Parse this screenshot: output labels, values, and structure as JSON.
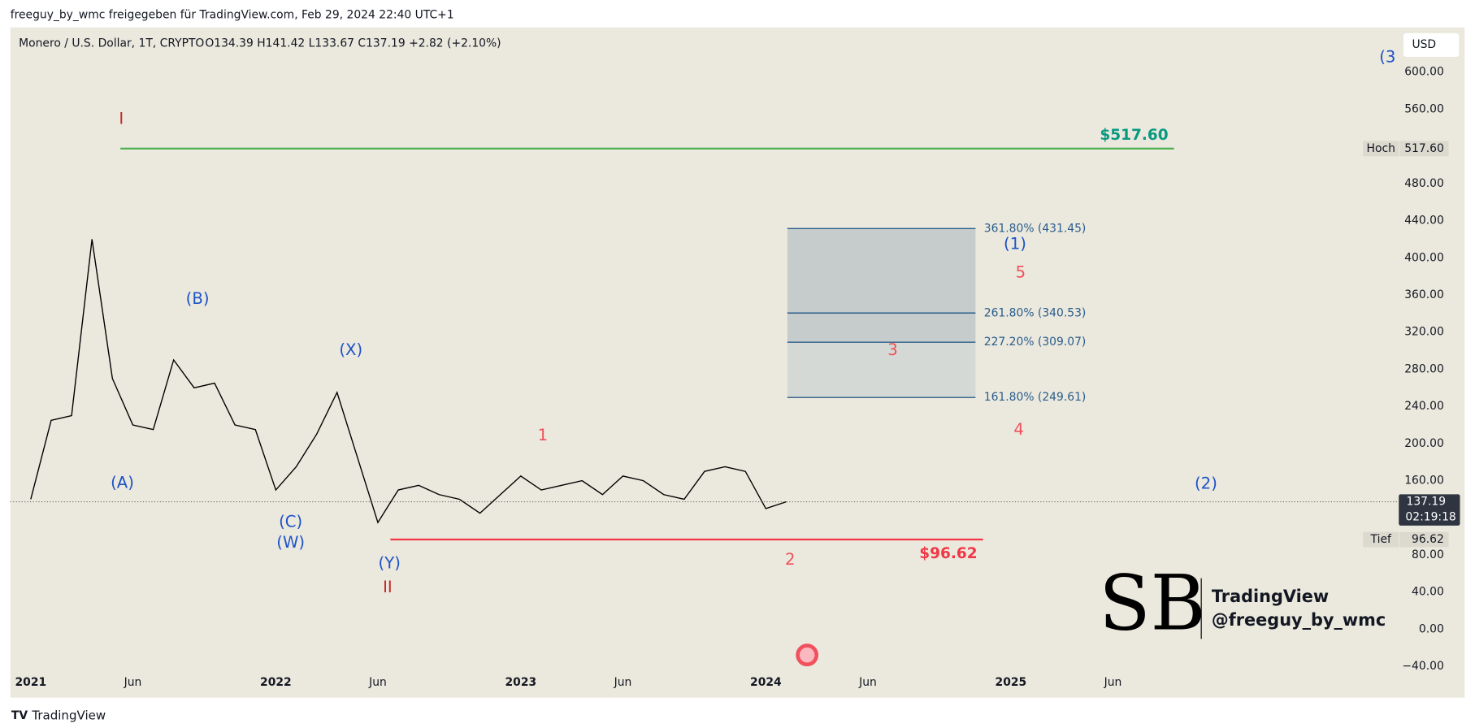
{
  "header": "freeguy_by_wmc freigegeben für TradingView.com, Feb 29, 2024 22:40 UTC+1",
  "footer": "TradingView",
  "currency": "USD",
  "watermark": [
    "TradingView",
    "@freeguy_by_wmc"
  ],
  "chart_data": {
    "type": "line",
    "title": "Monero / U.S. Dollar, 1T, CRYPTO",
    "ohlc_text": "O134.39  H141.42  L133.67  C137.19  +2.82 (+2.10%)",
    "color": "#000000",
    "x": [
      "2021-01",
      "2021-02",
      "2021-03",
      "2021-04",
      "2021-05",
      "2021-06",
      "2021-07",
      "2021-08",
      "2021-09",
      "2021-10",
      "2021-11",
      "2021-12",
      "2022-01",
      "2022-02",
      "2022-03",
      "2022-04",
      "2022-05",
      "2022-06",
      "2022-07",
      "2022-08",
      "2022-09",
      "2022-10",
      "2022-11",
      "2022-12",
      "2023-01",
      "2023-02",
      "2023-03",
      "2023-04",
      "2023-05",
      "2023-06",
      "2023-07",
      "2023-08",
      "2023-09",
      "2023-10",
      "2023-11",
      "2023-12",
      "2024-01",
      "2024-02"
    ],
    "values": [
      140,
      225,
      230,
      420,
      270,
      220,
      215,
      290,
      260,
      265,
      220,
      215,
      150,
      175,
      210,
      255,
      185,
      115,
      150,
      155,
      145,
      140,
      125,
      145,
      165,
      150,
      155,
      160,
      145,
      165,
      160,
      145,
      140,
      170,
      175,
      170,
      130,
      137.19
    ],
    "xlim": [
      "2020-12",
      "2026-08"
    ],
    "xticks": [
      {
        "value": "2021-01",
        "label": "2021"
      },
      {
        "value": "2021-06",
        "label": "Jun"
      },
      {
        "value": "2022-01",
        "label": "2022"
      },
      {
        "value": "2022-06",
        "label": "Jun"
      },
      {
        "value": "2023-01",
        "label": "2023"
      },
      {
        "value": "2023-06",
        "label": "Jun"
      },
      {
        "value": "2024-01",
        "label": "2024"
      },
      {
        "value": "2024-06",
        "label": "Jun"
      },
      {
        "value": "2025-01",
        "label": "2025"
      },
      {
        "value": "2025-06",
        "label": "Jun"
      }
    ],
    "ylim": [
      -40,
      648
    ],
    "yticks": [
      {
        "value": 600,
        "label": "600.00"
      },
      {
        "value": 560,
        "label": "560.00"
      },
      {
        "value": 480,
        "label": "480.00"
      },
      {
        "value": 440,
        "label": "440.00"
      },
      {
        "value": 400,
        "label": "400.00"
      },
      {
        "value": 360,
        "label": "360.00"
      },
      {
        "value": 320,
        "label": "320.00"
      },
      {
        "value": 280,
        "label": "280.00"
      },
      {
        "value": 240,
        "label": "240.00"
      },
      {
        "value": 200,
        "label": "200.00"
      },
      {
        "value": 160,
        "label": "160.00"
      },
      {
        "value": 80,
        "label": "80.00"
      },
      {
        "value": 40,
        "label": "40.00"
      },
      {
        "value": 0,
        "label": "0.00"
      },
      {
        "value": -40,
        "label": "−40.00"
      }
    ],
    "current_price": {
      "value": 137.19,
      "label": "137.19",
      "countdown": "02:19:18"
    },
    "levels": [
      {
        "name": "Hoch",
        "value": 517.6,
        "label": "517.60",
        "line_label": "$517.60",
        "color": "#4caf50",
        "text_color": "#089981"
      },
      {
        "name": "Tief",
        "value": 96.62,
        "label": "96.62",
        "line_label": "$96.62",
        "color": "#f23645",
        "text_color": "#f23645"
      }
    ],
    "fib": {
      "color": "#2a5d8c",
      "levels": [
        {
          "value": 431.45,
          "label": "361.80% (431.45)"
        },
        {
          "value": 340.53,
          "label": "261.80% (340.53)"
        },
        {
          "value": 309.07,
          "label": "227.20% (309.07)"
        },
        {
          "value": 249.61,
          "label": "161.80% (249.61)"
        }
      ]
    },
    "wave_labels": [
      "I",
      "(A)",
      "(B)",
      "(C)",
      "(W)",
      "(X)",
      "(Y)",
      "II",
      "1",
      "2",
      "3",
      "4",
      "5",
      "(1)",
      "(2)",
      "(3"
    ]
  }
}
